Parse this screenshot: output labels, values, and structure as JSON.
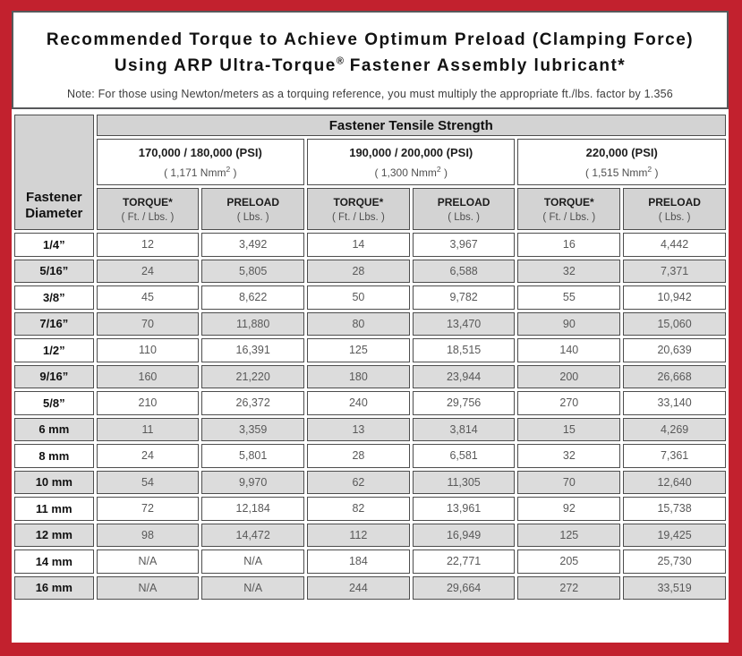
{
  "page": {
    "background_color": "#c2212e",
    "panel_border_color": "#57585a"
  },
  "header": {
    "title_line1": "Recommended Torque to Achieve Optimum Preload (Clamping Force)",
    "title_line2_pre": "Using ARP Ultra-Torque",
    "title_line2_sup": "®",
    "title_line2_post": " Fastener Assembly lubricant*",
    "note": "Note: For those using Newton/meters as a torquing reference, you must multiply the appropriate ft./lbs. factor by 1.356"
  },
  "table": {
    "tensile_strength_header": "Fastener Tensile Strength",
    "diameter_header_line1": "Fastener",
    "diameter_header_line2": "Diameter",
    "strength_groups": [
      {
        "psi": "170,000 / 180,000 (PSI)",
        "nmm_pre": "( 1,171 Nmm",
        "nmm_sup": "2",
        "nmm_post": " )"
      },
      {
        "psi": "190,000 / 200,000 (PSI)",
        "nmm_pre": "( 1,300 Nmm",
        "nmm_sup": "2",
        "nmm_post": " )"
      },
      {
        "psi": "220,000 (PSI)",
        "nmm_pre": "( 1,515 Nmm",
        "nmm_sup": "2",
        "nmm_post": " )"
      }
    ],
    "torque_label": "TORQUE*",
    "torque_unit": "( Ft. / Lbs. )",
    "preload_label": "PRELOAD",
    "preload_unit": "( Lbs. )",
    "rows": [
      {
        "dia": "1/4”",
        "values": [
          "12",
          "3,492",
          "14",
          "3,967",
          "16",
          "4,442"
        ]
      },
      {
        "dia": "5/16”",
        "values": [
          "24",
          "5,805",
          "28",
          "6,588",
          "32",
          "7,371"
        ]
      },
      {
        "dia": "3/8”",
        "values": [
          "45",
          "8,622",
          "50",
          "9,782",
          "55",
          "10,942"
        ]
      },
      {
        "dia": "7/16”",
        "values": [
          "70",
          "11,880",
          "80",
          "13,470",
          "90",
          "15,060"
        ]
      },
      {
        "dia": "1/2”",
        "values": [
          "110",
          "16,391",
          "125",
          "18,515",
          "140",
          "20,639"
        ]
      },
      {
        "dia": "9/16”",
        "values": [
          "160",
          "21,220",
          "180",
          "23,944",
          "200",
          "26,668"
        ]
      },
      {
        "dia": "5/8”",
        "values": [
          "210",
          "26,372",
          "240",
          "29,756",
          "270",
          "33,140"
        ]
      },
      {
        "dia": "6 mm",
        "values": [
          "11",
          "3,359",
          "13",
          "3,814",
          "15",
          "4,269"
        ]
      },
      {
        "dia": "8 mm",
        "values": [
          "24",
          "5,801",
          "28",
          "6,581",
          "32",
          "7,361"
        ]
      },
      {
        "dia": "10 mm",
        "values": [
          "54",
          "9,970",
          "62",
          "11,305",
          "70",
          "12,640"
        ]
      },
      {
        "dia": "11 mm",
        "values": [
          "72",
          "12,184",
          "82",
          "13,961",
          "92",
          "15,738"
        ]
      },
      {
        "dia": "12 mm",
        "values": [
          "98",
          "14,472",
          "112",
          "16,949",
          "125",
          "19,425"
        ]
      },
      {
        "dia": "14 mm",
        "values": [
          "N/A",
          "N/A",
          "184",
          "22,771",
          "205",
          "25,730"
        ]
      },
      {
        "dia": "16 mm",
        "values": [
          "N/A",
          "N/A",
          "244",
          "29,664",
          "272",
          "33,519"
        ]
      }
    ]
  },
  "colors": {
    "header_cell_bg": "#d3d3d3",
    "shaded_row_bg": "#dcdcdc",
    "cell_border": "#4d4d4d"
  }
}
